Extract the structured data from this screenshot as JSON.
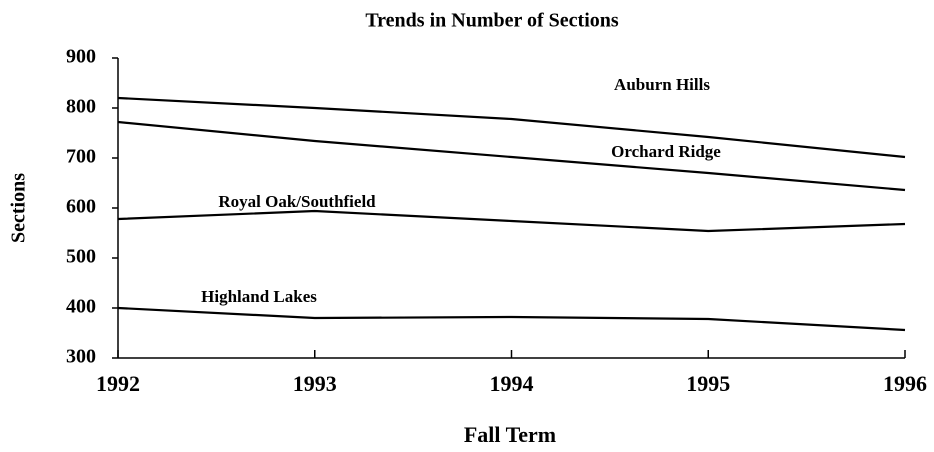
{
  "chart_data": {
    "type": "line",
    "title": "Trends in Number of Sections",
    "x_label": "Fall Term",
    "y_label": "Sections",
    "x": [
      1992,
      1993,
      1994,
      1995,
      1996
    ],
    "xlim": [
      1992,
      1996
    ],
    "xticks": [
      1992,
      1993,
      1994,
      1995,
      1996
    ],
    "ylim": [
      300,
      900
    ],
    "yticks": [
      300,
      400,
      500,
      600,
      700,
      800,
      900
    ],
    "grid": false,
    "series": [
      {
        "name": "Auburn Hills",
        "color": "#000000",
        "values": [
          820,
          800,
          778,
          742,
          702
        ]
      },
      {
        "name": "Orchard Ridge",
        "color": "#000000",
        "values": [
          772,
          734,
          702,
          670,
          636
        ]
      },
      {
        "name": "Royal Oak/Southfield",
        "color": "#000000",
        "values": [
          578,
          594,
          574,
          554,
          568
        ]
      },
      {
        "name": "Highland Lakes",
        "color": "#000000",
        "values": [
          400,
          380,
          382,
          378,
          356
        ]
      }
    ]
  }
}
